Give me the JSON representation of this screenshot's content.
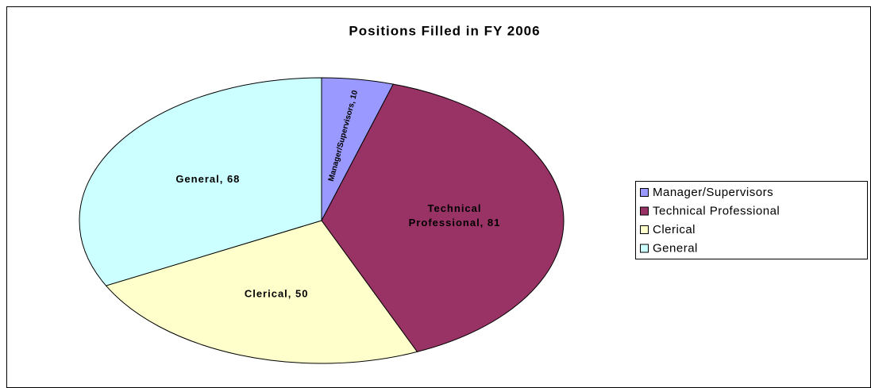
{
  "chart_data": {
    "type": "pie",
    "title": "Positions Filled in FY 2006",
    "categories": [
      "Manager/Supervisors",
      "Technical Professional",
      "Clerical",
      "General"
    ],
    "values": [
      10,
      81,
      50,
      68
    ],
    "value_labels": [
      "Manager/Supervisors, 10",
      "Technical Professional, 81",
      "Clerical, 50",
      "General, 68"
    ],
    "colors": [
      "#9999ff",
      "#993366",
      "#ffffcc",
      "#ccffff"
    ],
    "legend": "right"
  }
}
